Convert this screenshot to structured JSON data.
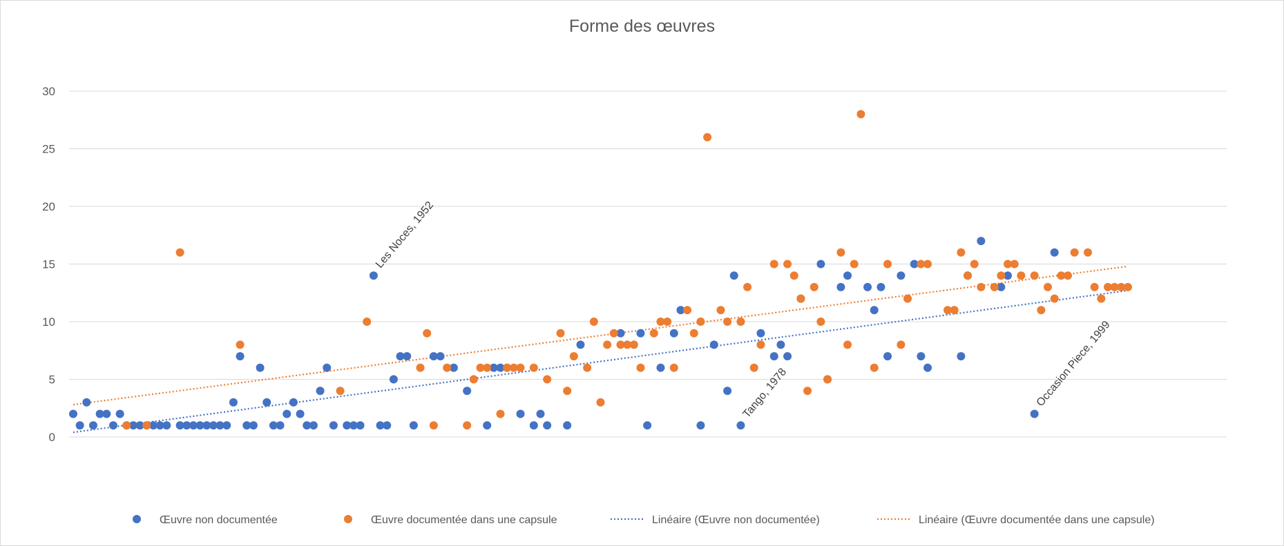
{
  "chart_data": {
    "type": "scatter",
    "title": "Forme des œuvres",
    "xlabel": "",
    "ylabel": "",
    "ylim": [
      0,
      30
    ],
    "y_ticks": [
      "0",
      "5",
      "10",
      "15",
      "20",
      "25",
      "30"
    ],
    "grid": true,
    "legend_position": "bottom",
    "colors": {
      "blue": "#4472C4",
      "orange": "#ED7D31",
      "grid": "#d9d9d9"
    },
    "series": [
      {
        "name": "Œuvre non documentée",
        "color": "#4472C4",
        "points": [
          [
            1,
            2
          ],
          [
            2,
            1
          ],
          [
            3,
            3
          ],
          [
            4,
            1
          ],
          [
            5,
            2
          ],
          [
            6,
            2
          ],
          [
            7,
            1
          ],
          [
            8,
            2
          ],
          [
            9,
            1
          ],
          [
            10,
            1
          ],
          [
            11,
            1
          ],
          [
            12,
            1
          ],
          [
            13,
            1
          ],
          [
            14,
            1
          ],
          [
            15,
            1
          ],
          [
            17,
            1
          ],
          [
            18,
            1
          ],
          [
            19,
            1
          ],
          [
            20,
            1
          ],
          [
            21,
            1
          ],
          [
            22,
            1
          ],
          [
            23,
            1
          ],
          [
            24,
            1
          ],
          [
            25,
            3
          ],
          [
            26,
            7
          ],
          [
            27,
            1
          ],
          [
            28,
            1
          ],
          [
            29,
            6
          ],
          [
            30,
            3
          ],
          [
            31,
            1
          ],
          [
            32,
            1
          ],
          [
            33,
            2
          ],
          [
            34,
            3
          ],
          [
            35,
            2
          ],
          [
            36,
            1
          ],
          [
            37,
            1
          ],
          [
            38,
            4
          ],
          [
            39,
            6
          ],
          [
            40,
            1
          ],
          [
            42,
            1
          ],
          [
            43,
            1
          ],
          [
            44,
            1
          ],
          [
            46,
            14
          ],
          [
            47,
            1
          ],
          [
            48,
            1
          ],
          [
            49,
            5
          ],
          [
            50,
            7
          ],
          [
            51,
            7
          ],
          [
            52,
            1
          ],
          [
            55,
            7
          ],
          [
            56,
            7
          ],
          [
            58,
            6
          ],
          [
            60,
            4
          ],
          [
            63,
            1
          ],
          [
            64,
            6
          ],
          [
            65,
            6
          ],
          [
            66,
            6
          ],
          [
            68,
            2
          ],
          [
            70,
            1
          ],
          [
            71,
            2
          ],
          [
            72,
            1
          ],
          [
            75,
            1
          ],
          [
            77,
            8
          ],
          [
            83,
            9
          ],
          [
            86,
            9
          ],
          [
            87,
            1
          ],
          [
            89,
            6
          ],
          [
            91,
            9
          ],
          [
            92,
            11
          ],
          [
            95,
            1
          ],
          [
            97,
            8
          ],
          [
            99,
            4
          ],
          [
            100,
            14
          ],
          [
            101,
            1
          ],
          [
            104,
            9
          ],
          [
            106,
            7
          ],
          [
            107,
            8
          ],
          [
            108,
            7
          ],
          [
            110,
            12
          ],
          [
            113,
            15
          ],
          [
            114,
            5
          ],
          [
            116,
            13
          ],
          [
            117,
            14
          ],
          [
            120,
            13
          ],
          [
            121,
            11
          ],
          [
            122,
            13
          ],
          [
            123,
            7
          ],
          [
            125,
            14
          ],
          [
            127,
            15
          ],
          [
            128,
            7
          ],
          [
            129,
            6
          ],
          [
            134,
            7
          ],
          [
            135,
            14
          ],
          [
            137,
            17
          ],
          [
            140,
            13
          ],
          [
            141,
            14
          ],
          [
            145,
            2
          ],
          [
            148,
            16
          ]
        ]
      },
      {
        "name": "Œuvre documentée dans une capsule",
        "color": "#ED7D31",
        "points": [
          [
            9,
            1
          ],
          [
            12,
            1
          ],
          [
            17,
            16
          ],
          [
            26,
            8
          ],
          [
            41,
            4
          ],
          [
            45,
            10
          ],
          [
            53,
            6
          ],
          [
            54,
            9
          ],
          [
            55,
            1
          ],
          [
            57,
            6
          ],
          [
            60,
            1
          ],
          [
            61,
            5
          ],
          [
            62,
            6
          ],
          [
            63,
            6
          ],
          [
            65,
            2
          ],
          [
            66,
            6
          ],
          [
            67,
            6
          ],
          [
            68,
            6
          ],
          [
            70,
            6
          ],
          [
            72,
            5
          ],
          [
            74,
            9
          ],
          [
            75,
            4
          ],
          [
            76,
            7
          ],
          [
            78,
            6
          ],
          [
            79,
            10
          ],
          [
            80,
            3
          ],
          [
            81,
            8
          ],
          [
            82,
            9
          ],
          [
            83,
            8
          ],
          [
            84,
            8
          ],
          [
            85,
            8
          ],
          [
            86,
            6
          ],
          [
            88,
            9
          ],
          [
            89,
            10
          ],
          [
            90,
            10
          ],
          [
            91,
            6
          ],
          [
            93,
            11
          ],
          [
            94,
            9
          ],
          [
            95,
            10
          ],
          [
            96,
            26
          ],
          [
            98,
            11
          ],
          [
            99,
            10
          ],
          [
            101,
            10
          ],
          [
            102,
            13
          ],
          [
            103,
            6
          ],
          [
            104,
            8
          ],
          [
            106,
            15
          ],
          [
            108,
            15
          ],
          [
            109,
            14
          ],
          [
            110,
            12
          ],
          [
            111,
            4
          ],
          [
            112,
            13
          ],
          [
            113,
            10
          ],
          [
            114,
            5
          ],
          [
            116,
            16
          ],
          [
            117,
            8
          ],
          [
            118,
            15
          ],
          [
            119,
            28
          ],
          [
            121,
            6
          ],
          [
            123,
            15
          ],
          [
            125,
            8
          ],
          [
            126,
            12
          ],
          [
            128,
            15
          ],
          [
            129,
            15
          ],
          [
            132,
            11
          ],
          [
            133,
            11
          ],
          [
            134,
            16
          ],
          [
            135,
            14
          ],
          [
            136,
            15
          ],
          [
            137,
            13
          ],
          [
            139,
            13
          ],
          [
            140,
            14
          ],
          [
            141,
            15
          ],
          [
            142,
            15
          ],
          [
            143,
            14
          ],
          [
            145,
            14
          ],
          [
            146,
            11
          ],
          [
            147,
            13
          ],
          [
            148,
            12
          ],
          [
            149,
            14
          ],
          [
            150,
            14
          ],
          [
            151,
            16
          ],
          [
            153,
            16
          ],
          [
            154,
            13
          ],
          [
            155,
            12
          ],
          [
            156,
            13
          ],
          [
            157,
            13
          ],
          [
            158,
            13
          ],
          [
            159,
            13
          ]
        ]
      },
      {
        "name": "Linéaire  (Œuvre non documentée)",
        "type": "trendline",
        "color": "#4472C4",
        "from": [
          1,
          0.4
        ],
        "to": [
          159,
          12.7
        ]
      },
      {
        "name": "Linéaire  (Œuvre documentée dans une capsule)",
        "type": "trendline",
        "color": "#ED7D31",
        "from": [
          1,
          2.8
        ],
        "to": [
          159,
          14.8
        ]
      }
    ],
    "annotations": [
      {
        "text": "Les Noces, 1952",
        "x": 46,
        "y": 14
      },
      {
        "text": "Tango, 1978",
        "x": 101,
        "y": 1
      },
      {
        "text": "Occasion Piece, 1999",
        "x": 145,
        "y": 2
      }
    ]
  }
}
